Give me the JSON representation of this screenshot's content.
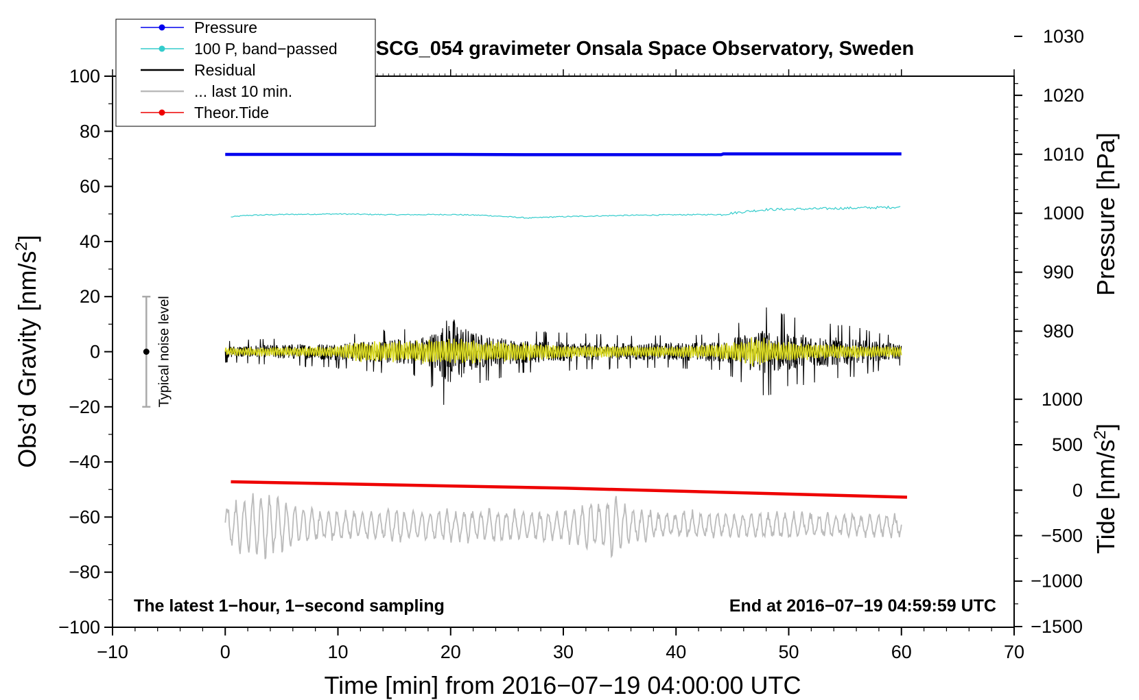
{
  "chart_data": {
    "type": "line",
    "title": "SCG_054 gravimeter Onsala Space Observatory, Sweden",
    "xlabel": "Time [min] from 2016−07−19 04:00:00 UTC",
    "ylabel_left": "Obs’d Gravity [nm/s",
    "ylabel_left_sup": "2",
    "ylabel_left_end": "]",
    "ylabel_pressure": "Pressure [hPa]",
    "ylabel_tide": "Tide [nm/s",
    "ylabel_tide_sup": "2",
    "ylabel_tide_end": "]",
    "xlim": [
      -10,
      70
    ],
    "ylim": [
      -100,
      100
    ],
    "x_ticks": [
      -10,
      0,
      10,
      20,
      30,
      40,
      50,
      60,
      70
    ],
    "x_tick_labels": [
      "−10",
      "0",
      "10",
      "20",
      "30",
      "40",
      "50",
      "60",
      "70"
    ],
    "y_ticks": [
      100,
      80,
      60,
      40,
      20,
      0,
      -20,
      -40,
      -60,
      -80,
      -100
    ],
    "y_tick_labels": [
      "100",
      "80",
      "60",
      "40",
      "20",
      "0",
      "−20",
      "−40",
      "−60",
      "−80",
      "−100"
    ],
    "pressure_ticks": [
      1030,
      1020,
      1010,
      1000,
      990,
      980
    ],
    "pressure_tick_labels": [
      "1030",
      "1020",
      "1010",
      "1000",
      "990",
      "980"
    ],
    "pressure_mapping": {
      "hPa_at_gravity_zero": 1001,
      "gravity_per_hPa": 2.14,
      "gravity_offset": 52.4
    },
    "tide_ticks": [
      1000,
      500,
      0,
      -500,
      -1000,
      -1500
    ],
    "tide_tick_labels": [
      "1000",
      "500",
      "0",
      "−500",
      "−1000",
      "−1500"
    ],
    "tide_mapping": {
      "gravity_at_tide_zero": -50.25,
      "gravity_per_nm": 0.033
    },
    "legend": [
      {
        "label": "Pressure",
        "color": "#0000ee",
        "marker": true
      },
      {
        "label": "100 P, band−passed",
        "color": "#33cccc",
        "marker": true
      },
      {
        "label": "Residual",
        "color": "#000000",
        "marker": false
      },
      {
        "label": "... last 10 min.",
        "color": "#bbbbbb",
        "marker": false
      },
      {
        "label": "Theor.Tide",
        "color": "#ee0000",
        "marker": true
      }
    ],
    "series": [
      {
        "name": "Pressure",
        "color": "#0000ee",
        "x": [
          0,
          10,
          20,
          27,
          30,
          40,
          44,
          44.2,
          50,
          60
        ],
        "y": [
          71.6,
          71.6,
          71.6,
          71.5,
          71.5,
          71.5,
          71.5,
          71.8,
          71.8,
          71.8
        ]
      },
      {
        "name": "100 P, band−passed",
        "color": "#33cccc",
        "x": [
          0.5,
          2,
          5,
          10,
          15,
          20,
          23,
          25,
          27,
          29,
          32,
          36,
          40,
          44,
          46,
          48,
          50,
          54,
          60
        ],
        "y": [
          48.9,
          49.5,
          49.8,
          50.0,
          49.7,
          49.8,
          49.5,
          49.0,
          48.5,
          48.9,
          49.2,
          49.5,
          49.7,
          49.8,
          50.8,
          51.6,
          51.7,
          52.0,
          52.5
        ]
      },
      {
        "name": "Residual",
        "color": "#000000",
        "x_range": [
          0,
          60
        ],
        "baseline": 0,
        "envelope_x": [
          0,
          5,
          10,
          14,
          17,
          19,
          19.8,
          20.5,
          21.5,
          23,
          26,
          30,
          36,
          40,
          44,
          46,
          48,
          50,
          53,
          56,
          60
        ],
        "envelope_y": [
          4,
          5,
          6,
          8,
          9,
          15,
          24,
          22,
          15,
          11,
          8,
          7,
          6,
          6,
          7,
          12,
          17,
          13,
          11,
          9,
          5
        ]
      },
      {
        "name": "Residual (filtered)",
        "color": "#d8d81f",
        "x_range": [
          0,
          60
        ],
        "baseline": 0,
        "envelope_x": [
          0,
          10,
          12,
          16,
          20,
          24,
          30,
          40,
          44,
          46,
          47,
          49,
          52,
          60
        ],
        "envelope_y": [
          1.5,
          2,
          4,
          4,
          5,
          4,
          2.5,
          2,
          3,
          4,
          6,
          4,
          3,
          2
        ]
      },
      {
        "name": "Theor.Tide",
        "color": "#ee0000",
        "x": [
          0.5,
          30,
          60.5
        ],
        "y": [
          -47.2,
          -49.5,
          -52.8
        ]
      },
      {
        "name": "... last 10 min.",
        "color": "#bbbbbb",
        "x_range": [
          0,
          60
        ],
        "center": -63,
        "envelope_x": [
          0,
          2,
          4,
          6,
          10,
          20,
          30,
          34.5,
          36,
          40,
          50,
          60
        ],
        "envelope_y": [
          8,
          12,
          12,
          8,
          6,
          6,
          6,
          12,
          6,
          5,
          5,
          4
        ]
      }
    ],
    "noise_bar": {
      "x": -7,
      "y_min": -20,
      "y_max": 20,
      "center": 0,
      "label": "Typical noise level"
    },
    "annotations": {
      "bottom_left": "The latest 1−hour, 1−second sampling",
      "bottom_right": "End at 2016−07−19 04:59:59 UTC"
    },
    "grid": false
  }
}
